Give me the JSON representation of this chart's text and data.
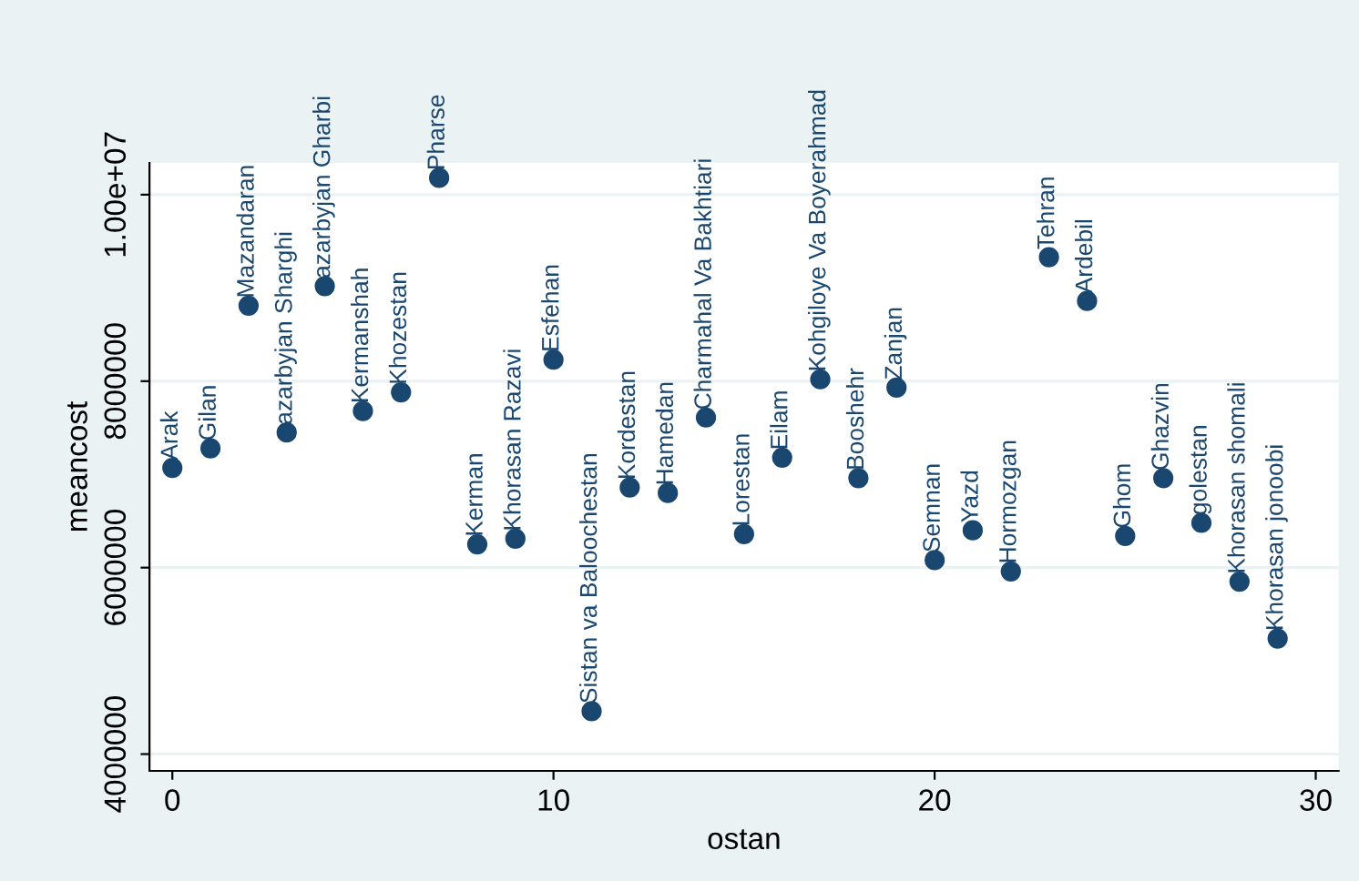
{
  "chart_data": {
    "type": "scatter",
    "xlabel": "ostan",
    "ylabel": "meancost",
    "x": [
      0,
      1,
      2,
      3,
      4,
      5,
      6,
      7,
      8,
      9,
      10,
      11,
      12,
      13,
      14,
      15,
      16,
      17,
      18,
      19,
      20,
      21,
      22,
      23,
      24,
      25,
      26,
      27,
      28,
      29
    ],
    "series": [
      {
        "color": "#1a476f",
        "values": [
          7070000,
          7280000,
          8810000,
          7450000,
          9020000,
          7680000,
          7880000,
          10180000,
          6250000,
          6310000,
          8230000,
          4460000,
          6860000,
          6800000,
          7610000,
          6360000,
          7180000,
          8020000,
          6960000,
          7930000,
          6080000,
          6400000,
          5960000,
          9330000,
          8860000,
          6340000,
          6960000,
          6480000,
          5850000,
          5240000
        ]
      }
    ],
    "annotations": [
      {
        "text": "Arak",
        "x": 0,
        "y": 7070000
      },
      {
        "text": "Gilan",
        "x": 1,
        "y": 7280000
      },
      {
        "text": "Mazandaran",
        "x": 2,
        "y": 8810000
      },
      {
        "text": "azarbyjan Sharghi",
        "x": 3,
        "y": 7450000
      },
      {
        "text": "azarbyjan Gharbi",
        "x": 4,
        "y": 9020000
      },
      {
        "text": "Kermanshah",
        "x": 5,
        "y": 7680000
      },
      {
        "text": "Khozestan",
        "x": 6,
        "y": 7880000
      },
      {
        "text": "Pharse",
        "x": 7,
        "y": 10180000
      },
      {
        "text": "Kerman",
        "x": 8,
        "y": 6250000
      },
      {
        "text": "Khorasan Razavi",
        "x": 9,
        "y": 6310000
      },
      {
        "text": "Esfehan",
        "x": 10,
        "y": 8230000
      },
      {
        "text": "Sistan va Baloochestan",
        "x": 11,
        "y": 4460000
      },
      {
        "text": "Kordestan",
        "x": 12,
        "y": 6860000
      },
      {
        "text": "Hamedan",
        "x": 13,
        "y": 6800000
      },
      {
        "text": "Charmahal Va Bakhtiari",
        "x": 14,
        "y": 7610000
      },
      {
        "text": "Lorestan",
        "x": 15,
        "y": 6360000
      },
      {
        "text": "Eilam",
        "x": 16,
        "y": 7180000
      },
      {
        "text": "Kohgiloye Va Boyerahmad",
        "x": 17,
        "y": 8020000
      },
      {
        "text": "Booshehr",
        "x": 18,
        "y": 6960000
      },
      {
        "text": "Zanjan",
        "x": 19,
        "y": 7930000
      },
      {
        "text": "Semnan",
        "x": 20,
        "y": 6080000
      },
      {
        "text": "Yazd",
        "x": 21,
        "y": 6400000
      },
      {
        "text": "Hormozgan",
        "x": 22,
        "y": 5960000
      },
      {
        "text": "Tehran",
        "x": 23,
        "y": 9330000
      },
      {
        "text": "Ardebil",
        "x": 24,
        "y": 8860000
      },
      {
        "text": "Ghom",
        "x": 25,
        "y": 6340000
      },
      {
        "text": "Ghazvin",
        "x": 26,
        "y": 6960000
      },
      {
        "text": "golestan",
        "x": 27,
        "y": 6480000
      },
      {
        "text": "Khorasan shomali",
        "x": 28,
        "y": 5850000
      },
      {
        "text": "Khorasan jonoobi",
        "x": 29,
        "y": 5240000
      }
    ],
    "xlim": [
      -0.6,
      30.6
    ],
    "ylim": [
      3820000,
      10340000
    ],
    "xticks": [
      0,
      10,
      20,
      30
    ],
    "yticks": [
      4000000,
      6000000,
      8000000,
      {
        "value": 10000000,
        "label": "1.00e+07"
      }
    ],
    "grid": "y",
    "marker": "circle"
  }
}
